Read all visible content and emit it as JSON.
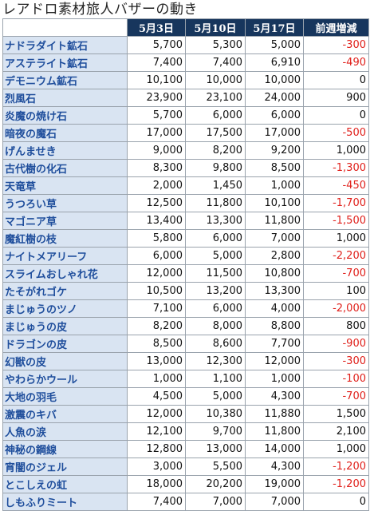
{
  "title": "レアドロ素材旅人バザーの動き",
  "header": {
    "corner": "",
    "col1": "5月3日",
    "col2": "5月10日",
    "col3": "5月17日",
    "col4": "前週増減"
  },
  "colors": {
    "header_bg": "#17365d",
    "name_bg": "#d9e4f2",
    "name_text": "#1f4e9c",
    "negative": "#e0201b"
  },
  "rows": [
    {
      "name": "ナドラダイト鉱石",
      "may3": "5,700",
      "may10": "5,300",
      "may17": "5,000",
      "diff": "-300"
    },
    {
      "name": "アステライト鉱石",
      "may3": "7,400",
      "may10": "7,400",
      "may17": "6,910",
      "diff": "-490"
    },
    {
      "name": "デモニウム鉱石",
      "may3": "10,100",
      "may10": "10,000",
      "may17": "10,000",
      "diff": "0"
    },
    {
      "name": "烈風石",
      "may3": "23,900",
      "may10": "23,100",
      "may17": "24,000",
      "diff": "900"
    },
    {
      "name": "炎魔の焼け石",
      "may3": "5,700",
      "may10": "6,000",
      "may17": "6,000",
      "diff": "0"
    },
    {
      "name": "暗夜の魔石",
      "may3": "17,000",
      "may10": "17,500",
      "may17": "17,000",
      "diff": "-500"
    },
    {
      "name": "げんませき",
      "may3": "9,000",
      "may10": "8,200",
      "may17": "9,200",
      "diff": "1,000"
    },
    {
      "name": "古代樹の化石",
      "may3": "8,300",
      "may10": "9,800",
      "may17": "8,500",
      "diff": "-1,300"
    },
    {
      "name": "天竜草",
      "may3": "2,000",
      "may10": "1,450",
      "may17": "1,000",
      "diff": "-450"
    },
    {
      "name": "うつろい草",
      "may3": "12,500",
      "may10": "11,800",
      "may17": "10,100",
      "diff": "-1,700"
    },
    {
      "name": "マゴニア草",
      "may3": "13,400",
      "may10": "13,300",
      "may17": "11,800",
      "diff": "-1,500"
    },
    {
      "name": "魔紅樹の枝",
      "may3": "5,800",
      "may10": "6,000",
      "may17": "7,000",
      "diff": "1,000"
    },
    {
      "name": "ナイトメアリーフ",
      "may3": "6,000",
      "may10": "5,000",
      "may17": "2,800",
      "diff": "-2,200"
    },
    {
      "name": "スライムおしゃれ花",
      "may3": "12,000",
      "may10": "11,500",
      "may17": "10,800",
      "diff": "-700"
    },
    {
      "name": "たそがれゴケ",
      "may3": "10,500",
      "may10": "13,200",
      "may17": "13,300",
      "diff": "100"
    },
    {
      "name": "まじゅうのツノ",
      "may3": "7,100",
      "may10": "6,000",
      "may17": "4,000",
      "diff": "-2,000"
    },
    {
      "name": "まじゅうの皮",
      "may3": "8,200",
      "may10": "8,000",
      "may17": "8,800",
      "diff": "800"
    },
    {
      "name": "ドラゴンの皮",
      "may3": "8,500",
      "may10": "8,600",
      "may17": "7,700",
      "diff": "-900"
    },
    {
      "name": "幻獣の皮",
      "may3": "13,000",
      "may10": "12,300",
      "may17": "12,000",
      "diff": "-300"
    },
    {
      "name": "やわらかウール",
      "may3": "1,000",
      "may10": "1,100",
      "may17": "1,000",
      "diff": "-100"
    },
    {
      "name": "大地の羽毛",
      "may3": "4,500",
      "may10": "5,000",
      "may17": "4,300",
      "diff": "-700"
    },
    {
      "name": "激震のキバ",
      "may3": "12,000",
      "may10": "10,380",
      "may17": "11,880",
      "diff": "1,500"
    },
    {
      "name": "人魚の涙",
      "may3": "12,100",
      "may10": "9,700",
      "may17": "11,800",
      "diff": "2,100"
    },
    {
      "name": "神秘の鋼線",
      "may3": "12,800",
      "may10": "13,000",
      "may17": "14,000",
      "diff": "1,000"
    },
    {
      "name": "宵闇のジェル",
      "may3": "3,000",
      "may10": "5,500",
      "may17": "4,300",
      "diff": "-1,200"
    },
    {
      "name": "とこしえの虹",
      "may3": "18,000",
      "may10": "20,200",
      "may17": "19,000",
      "diff": "-1,200"
    },
    {
      "name": "しもふりミート",
      "may3": "7,400",
      "may10": "7,000",
      "may17": "7,000",
      "diff": "0"
    }
  ]
}
